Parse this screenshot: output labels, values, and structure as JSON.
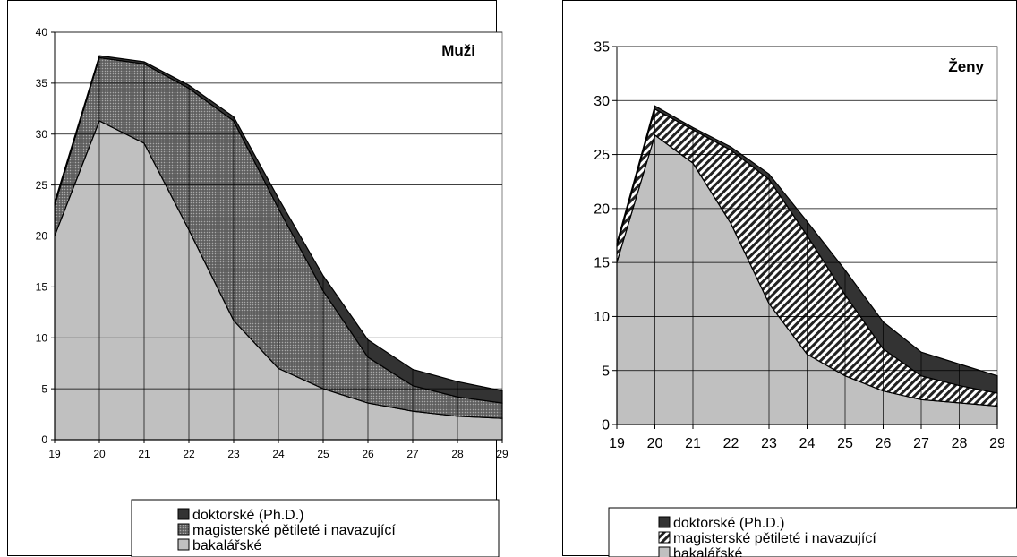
{
  "colors": {
    "bachelor": "#c0c0c0",
    "master": "#7f7f7f",
    "doctoral": "#333333",
    "grid": "#000000"
  },
  "chart_data": [
    {
      "type": "area",
      "stacked": true,
      "title": "Muži",
      "x": [
        19,
        20,
        21,
        22,
        23,
        24,
        25,
        26,
        27,
        28,
        29
      ],
      "ylim": [
        0,
        40
      ],
      "yticks": [
        0,
        5,
        10,
        15,
        20,
        25,
        30,
        35,
        40
      ],
      "grid": true,
      "legend_position": "bottom",
      "series": [
        {
          "name": "bakalářské",
          "key": "bachelor",
          "pattern": "solid",
          "values": [
            20,
            31.3,
            29.1,
            20.6,
            11.7,
            7.0,
            5.0,
            3.6,
            2.8,
            2.3,
            2.1
          ]
        },
        {
          "name": "magisterské pětileté i navazující",
          "key": "master",
          "pattern": "dots",
          "values": [
            3.0,
            6.2,
            7.8,
            13.9,
            19.6,
            15.7,
            9.6,
            4.5,
            2.5,
            1.9,
            1.5
          ]
        },
        {
          "name": "doktorské (Ph.D.)",
          "key": "doctoral",
          "pattern": "solid",
          "values": [
            0.3,
            0.2,
            0.2,
            0.3,
            0.4,
            1.0,
            1.5,
            1.7,
            1.6,
            1.5,
            1.2
          ]
        }
      ],
      "legend_order": [
        "doktorské (Ph.D.)",
        "magisterské pětileté i navazující",
        "bakalářské"
      ]
    },
    {
      "type": "area",
      "stacked": true,
      "title": "Ženy",
      "x": [
        19,
        20,
        21,
        22,
        23,
        24,
        25,
        26,
        27,
        28,
        29
      ],
      "ylim": [
        0,
        35
      ],
      "yticks": [
        0,
        5,
        10,
        15,
        20,
        25,
        30,
        35
      ],
      "grid": true,
      "legend_position": "bottom",
      "series": [
        {
          "name": "bakalářské",
          "key": "bachelor",
          "pattern": "solid",
          "values": [
            15,
            26.8,
            24.2,
            18.6,
            11.2,
            6.5,
            4.5,
            3.1,
            2.3,
            2.0,
            1.7
          ]
        },
        {
          "name": "magisterské pětileté i navazující",
          "key": "master",
          "pattern": "hatch",
          "values": [
            1.5,
            2.4,
            3.1,
            6.8,
            11.5,
            11.0,
            7.5,
            3.9,
            2.2,
            1.6,
            1.2
          ]
        },
        {
          "name": "doktorské (Ph.D.)",
          "key": "doctoral",
          "pattern": "solid",
          "values": [
            0.3,
            0.3,
            0.2,
            0.3,
            0.5,
            1.3,
            2.3,
            2.5,
            2.2,
            2.0,
            1.6
          ]
        }
      ],
      "legend_order": [
        "doktorské (Ph.D.)",
        "magisterské pětileté i navazující",
        "bakalářské"
      ]
    }
  ]
}
